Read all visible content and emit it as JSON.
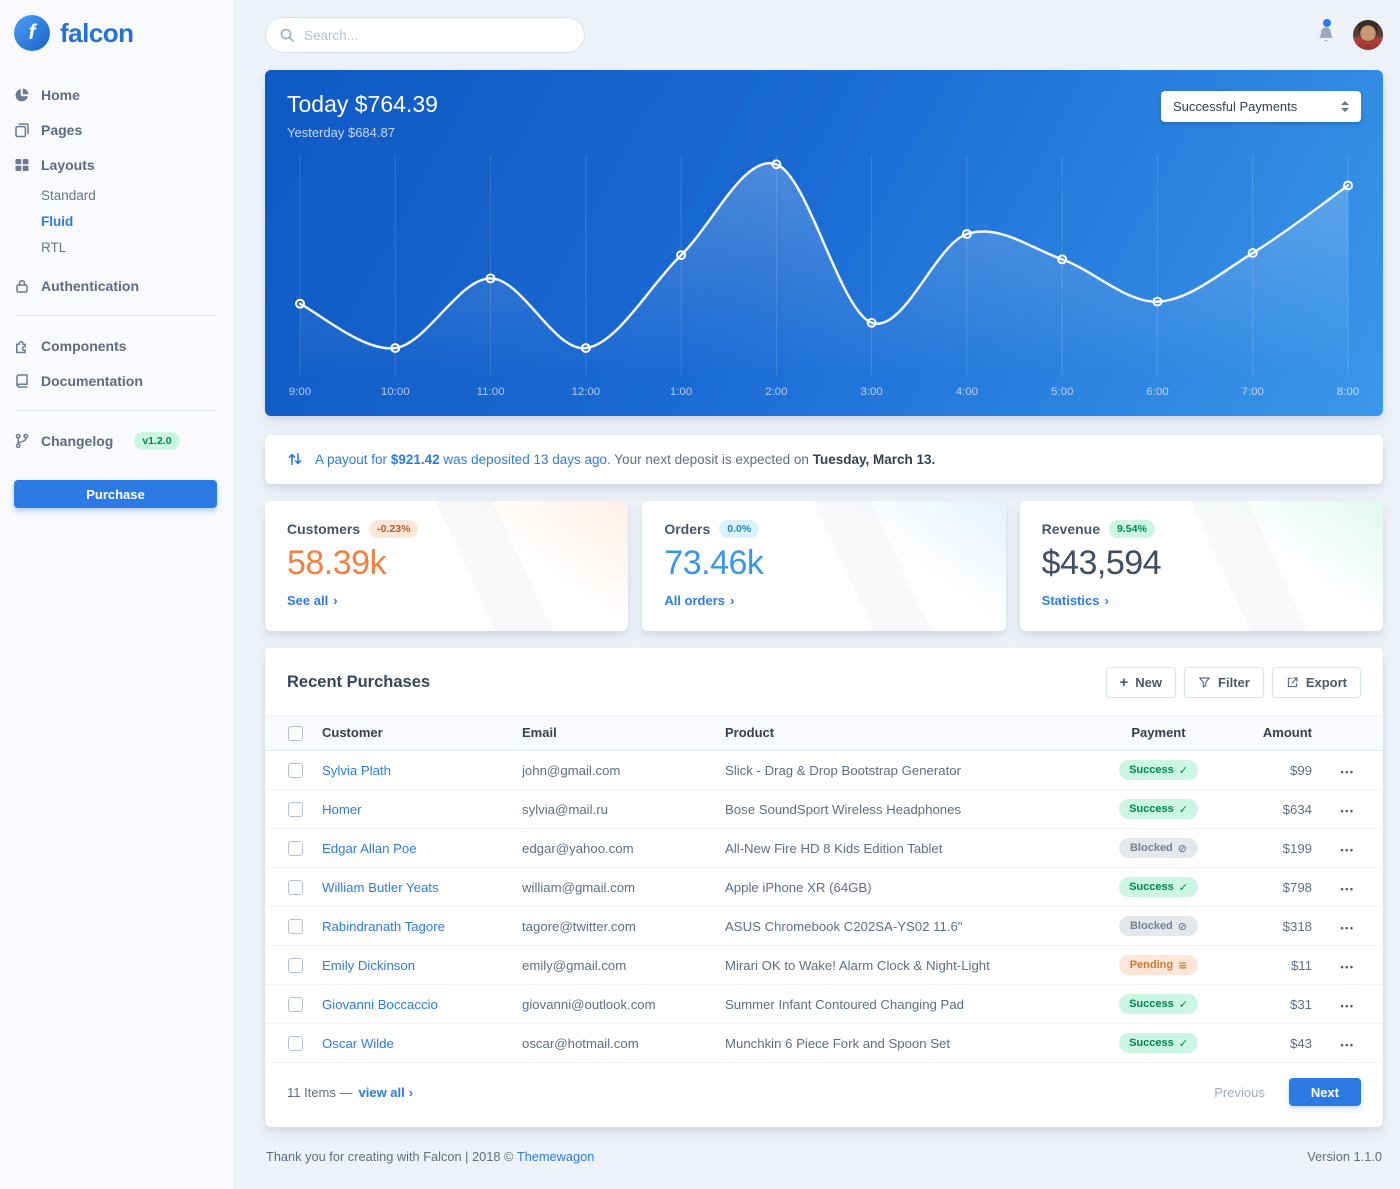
{
  "colors": {
    "primary": "#2c7be5",
    "hero_gradient_start": "#0f59c3",
    "hero_gradient_end": "#3b97ea",
    "success_badge_bg": "#ccf6e4",
    "success_badge_text": "#00864e",
    "blocked_badge_bg": "#e4e7eb",
    "blocked_badge_text": "#748194",
    "pending_badge_bg": "#fde6d8",
    "pending_badge_text": "#ca7b34",
    "customers_value": "#f5803e",
    "orders_value": "#3a97e8",
    "revenue_value": "#3f4e63"
  },
  "icons": {
    "plus": "+",
    "check": "✓",
    "blocked": "⊘",
    "pending": "≡",
    "chevron": "›",
    "ellipsis": "•••"
  },
  "brand": {
    "name": "falcon",
    "logo_initial": "f"
  },
  "topbar": {
    "search_placeholder": "Search..."
  },
  "sidebar": {
    "items": [
      {
        "label": "Home"
      },
      {
        "label": "Pages"
      },
      {
        "label": "Layouts",
        "children": [
          "Standard",
          "Fluid",
          "RTL"
        ],
        "active_child": "Fluid"
      },
      {
        "label": "Authentication"
      },
      {
        "label": "Components"
      },
      {
        "label": "Documentation"
      },
      {
        "label": "Changelog",
        "badge": "v1.2.0"
      }
    ],
    "purchase_label": "Purchase"
  },
  "hero": {
    "today_label": "Today",
    "today_value": "$764.39",
    "yesterday_label": "Yesterday",
    "yesterday_value": "$684.87",
    "filter_value": "Successful Payments"
  },
  "chart_data": {
    "type": "line",
    "title": "Today $764.39",
    "legend": "Successful Payments",
    "x": [
      "9:00",
      "10:00",
      "11:00",
      "12:00",
      "1:00",
      "2:00",
      "3:00",
      "4:00",
      "5:00",
      "6:00",
      "7:00",
      "8:00"
    ],
    "series": [
      {
        "name": "Successful Payments",
        "values": [
          34,
          13,
          46,
          13,
          57,
          100,
          25,
          67,
          55,
          35,
          58,
          90
        ]
      }
    ],
    "ylim": [
      0,
      100
    ],
    "grid": "vertical",
    "line_color": "#ffffff"
  },
  "payout": {
    "link_prefix": "A payout for",
    "amount": "$921.42",
    "link_suffix": "was deposited 13 days ago.",
    "plain": "Your next deposit is expected on",
    "date": "Tuesday, March 13."
  },
  "stats": {
    "cards": [
      {
        "title": "Customers",
        "badge": "-0.23%",
        "value": "58.39k",
        "link": "See all",
        "tone": "warning"
      },
      {
        "title": "Orders",
        "badge": "0.0%",
        "value": "73.46k",
        "link": "All orders",
        "tone": "info"
      },
      {
        "title": "Revenue",
        "badge": "9.54%",
        "value": "$43,594",
        "link": "Statistics",
        "tone": "success"
      }
    ]
  },
  "purchases": {
    "title": "Recent Purchases",
    "actions": {
      "new": "New",
      "filter": "Filter",
      "export": "Export"
    },
    "columns": [
      "Customer",
      "Email",
      "Product",
      "Payment",
      "Amount"
    ],
    "rows": [
      {
        "customer": "Sylvia Plath",
        "email": "john@gmail.com",
        "product": "Slick - Drag & Drop Bootstrap Generator",
        "payment": "Success",
        "amount": "$99"
      },
      {
        "customer": "Homer",
        "email": "sylvia@mail.ru",
        "product": "Bose SoundSport Wireless Headphones",
        "payment": "Success",
        "amount": "$634"
      },
      {
        "customer": "Edgar Allan Poe",
        "email": "edgar@yahoo.com",
        "product": "All-New Fire HD 8 Kids Edition Tablet",
        "payment": "Blocked",
        "amount": "$199"
      },
      {
        "customer": "William Butler Yeats",
        "email": "william@gmail.com",
        "product": "Apple iPhone XR (64GB)",
        "payment": "Success",
        "amount": "$798"
      },
      {
        "customer": "Rabindranath Tagore",
        "email": "tagore@twitter.com",
        "product": "ASUS Chromebook C202SA-YS02 11.6\"",
        "payment": "Blocked",
        "amount": "$318"
      },
      {
        "customer": "Emily Dickinson",
        "email": "emily@gmail.com",
        "product": "Mirari OK to Wake! Alarm Clock & Night-Light",
        "payment": "Pending",
        "amount": "$11"
      },
      {
        "customer": "Giovanni Boccaccio",
        "email": "giovanni@outlook.com",
        "product": "Summer Infant Contoured Changing Pad",
        "payment": "Success",
        "amount": "$31"
      },
      {
        "customer": "Oscar Wilde",
        "email": "oscar@hotmail.com",
        "product": "Munchkin 6 Piece Fork and Spoon Set",
        "payment": "Success",
        "amount": "$43"
      }
    ],
    "footer": {
      "items_count": "11 Items —",
      "view_all": "view all",
      "previous": "Previous",
      "next": "Next"
    }
  },
  "page_footer": {
    "thanks": "Thank you for creating with Falcon | 2018 ©",
    "brand_link": "Themewagon",
    "version": "Version 1.1.0"
  }
}
